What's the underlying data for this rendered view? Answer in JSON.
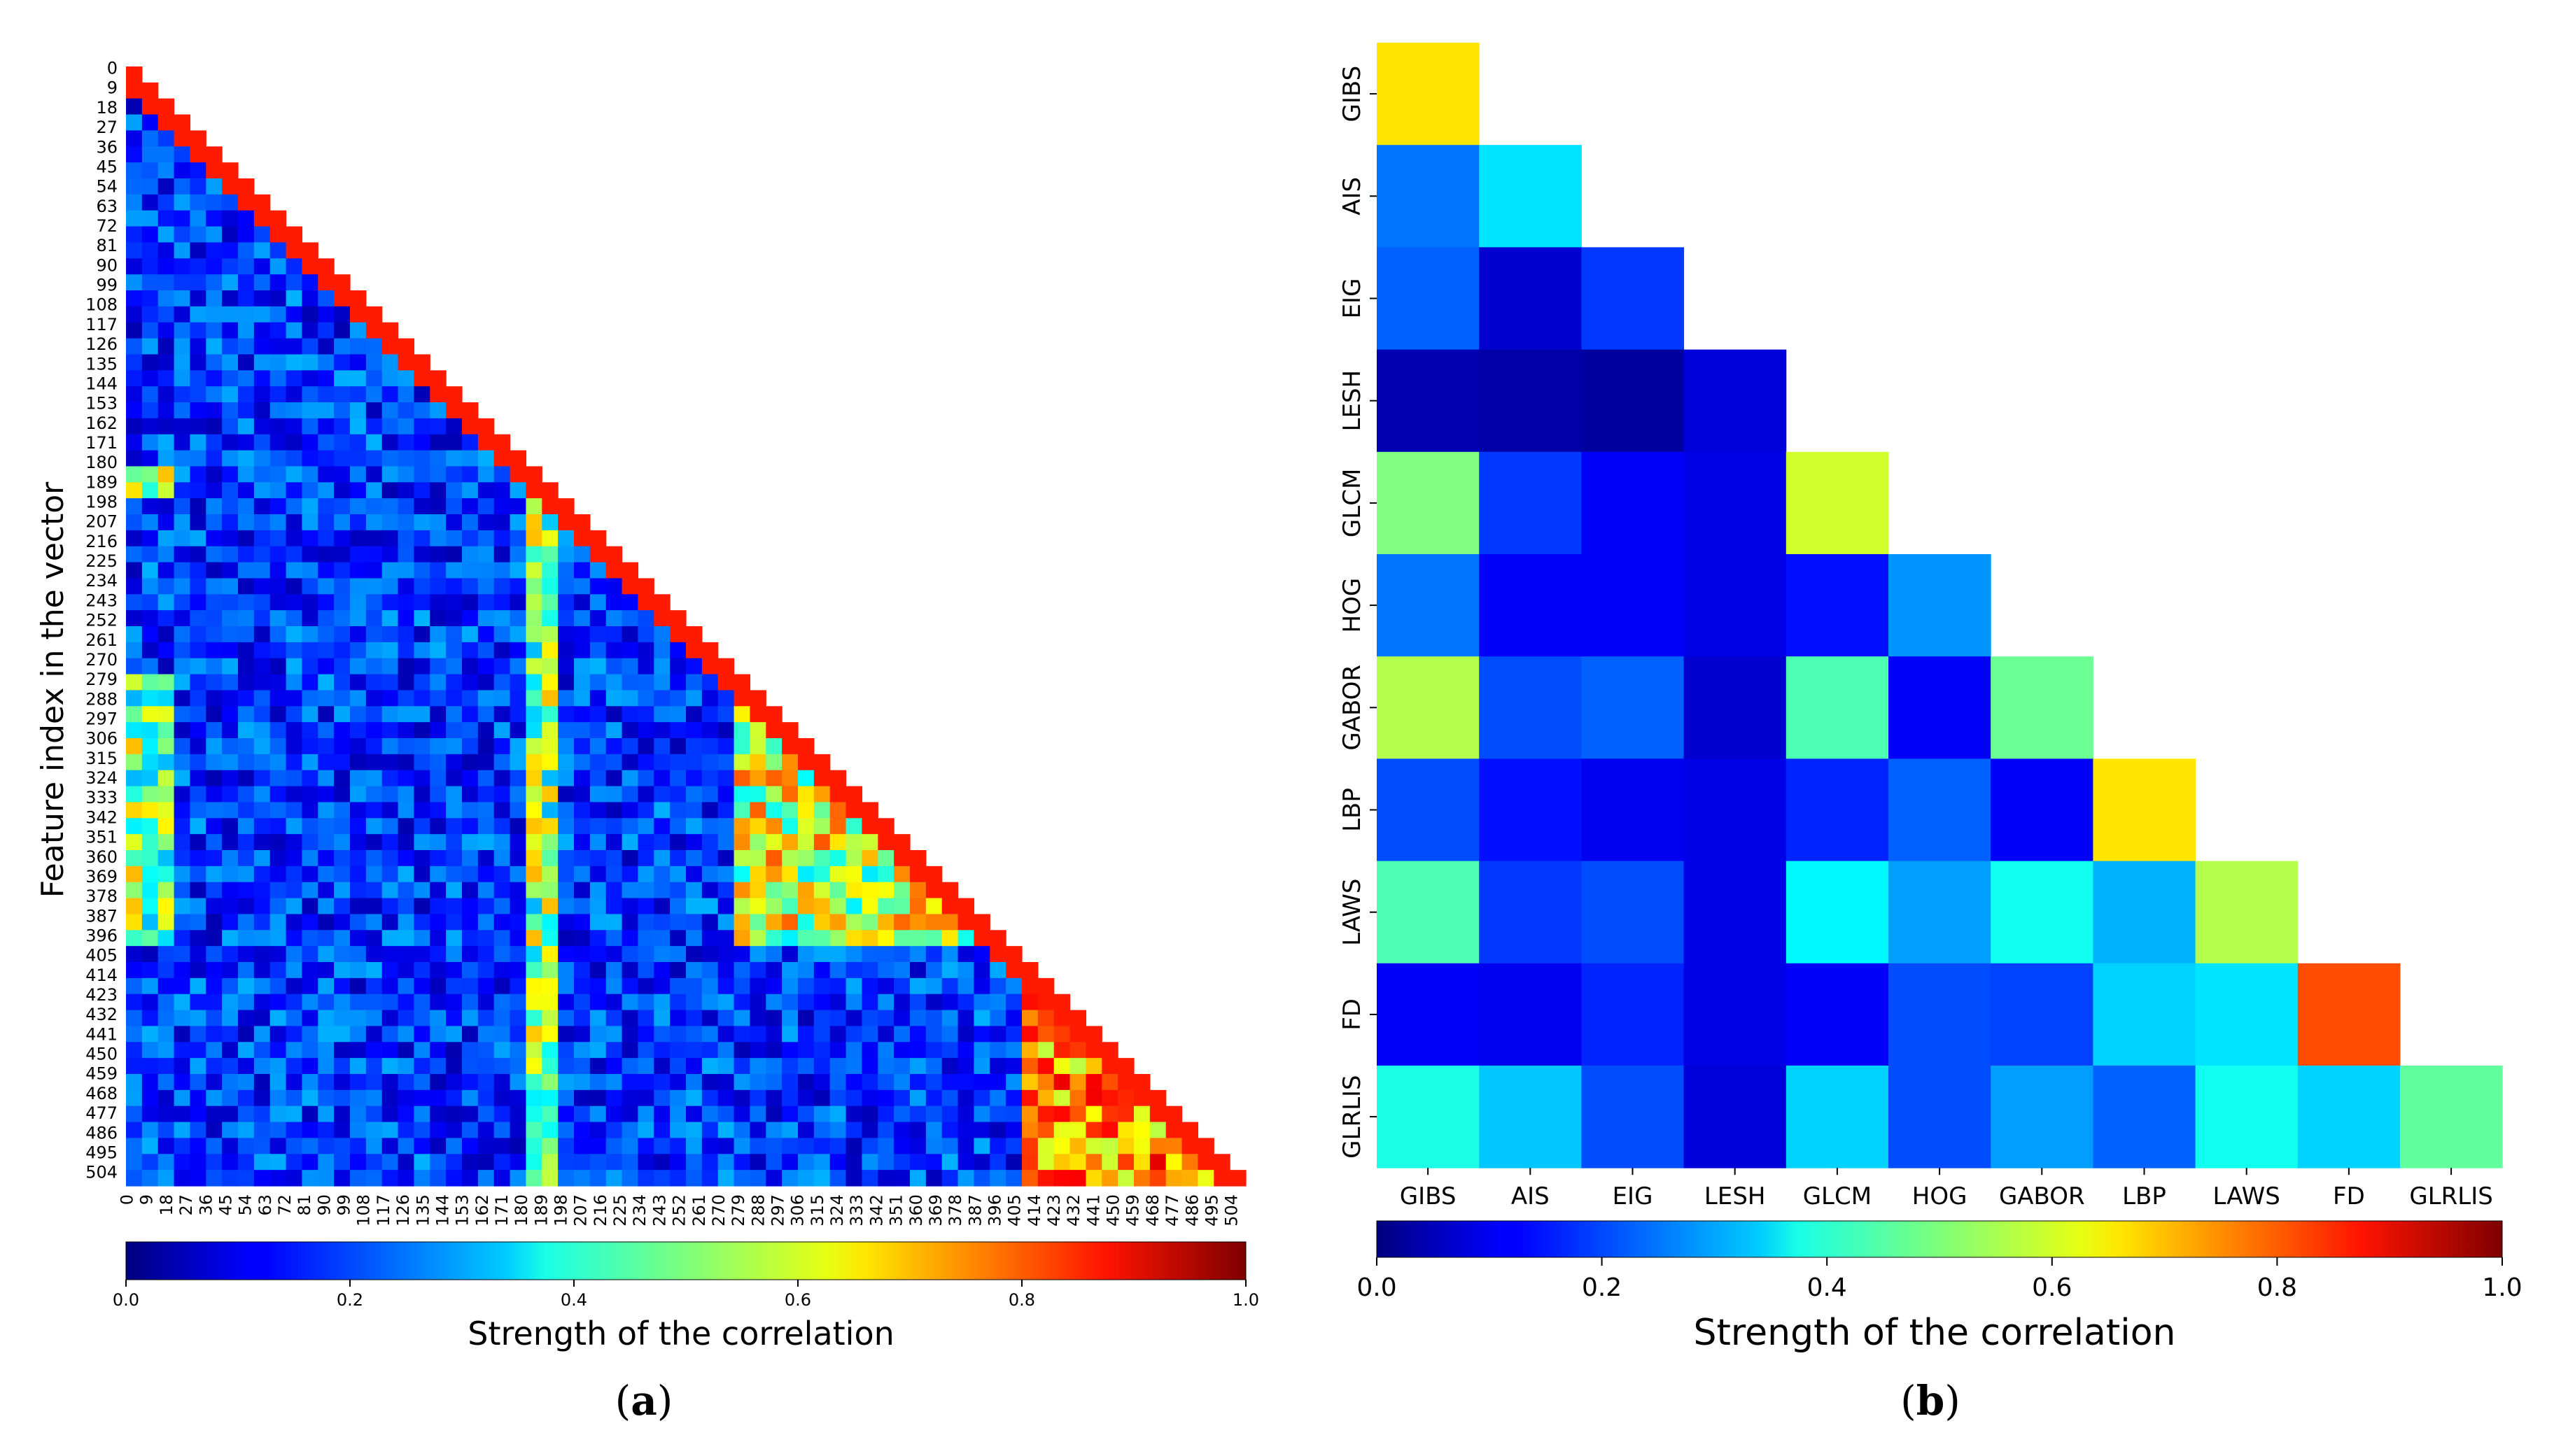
{
  "panel_a": {
    "caption_open": "(",
    "caption_letter": "a",
    "caption_close": ")",
    "ylabel": "Feature index in the vector",
    "colorbar_label": "Strength of the correlation",
    "colorbar_ticks": [
      "0.0",
      "0.2",
      "0.4",
      "0.6",
      "0.8",
      "1.0"
    ],
    "tick_labels": [
      "0",
      "9",
      "18",
      "27",
      "36",
      "45",
      "54",
      "63",
      "72",
      "81",
      "90",
      "99",
      "108",
      "117",
      "126",
      "135",
      "144",
      "153",
      "162",
      "171",
      "180",
      "189",
      "198",
      "207",
      "216",
      "225",
      "234",
      "243",
      "252",
      "261",
      "270",
      "279",
      "288",
      "297",
      "306",
      "315",
      "324",
      "333",
      "342",
      "351",
      "360",
      "369",
      "378",
      "387",
      "396",
      "405",
      "414",
      "423",
      "432",
      "441",
      "450",
      "459",
      "468",
      "477",
      "486",
      "495",
      "504"
    ]
  },
  "panel_b": {
    "caption_open": "(",
    "caption_letter": "b",
    "caption_close": ")",
    "colorbar_label": "Strength of the correlation",
    "colorbar_ticks": [
      "0.0",
      "0.2",
      "0.4",
      "0.6",
      "0.8",
      "1.0"
    ]
  },
  "chart_data": [
    {
      "type": "heatmap",
      "panel": "a",
      "shape": "lower-triangular",
      "xlabel": "",
      "ylabel": "Feature index in the vector",
      "n_features": 511,
      "color_range": [
        0.0,
        1.0
      ],
      "colormap": "jet",
      "note_values": "Dense 511x511 correlation matrix; values not individually readable",
      "colorbar_label": "Strength of the correlation"
    },
    {
      "type": "heatmap",
      "panel": "b",
      "shape": "lower-triangular",
      "categories": [
        "GIBS",
        "AIS",
        "EIG",
        "LESH",
        "GLCM",
        "HOG",
        "GABOR",
        "LBP",
        "LAWS",
        "FD",
        "GLRLIS"
      ],
      "color_range": [
        0.0,
        1.0
      ],
      "colormap": "jet",
      "colorbar_label": "Strength of the correlation",
      "values": [
        [
          0.65
        ],
        [
          0.24,
          0.35
        ],
        [
          0.22,
          0.08,
          0.18
        ],
        [
          0.05,
          0.04,
          0.03,
          0.09
        ],
        [
          0.5,
          0.18,
          0.12,
          0.1,
          0.58
        ],
        [
          0.24,
          0.12,
          0.12,
          0.1,
          0.14,
          0.27
        ],
        [
          0.55,
          0.2,
          0.22,
          0.08,
          0.45,
          0.12,
          0.48
        ],
        [
          0.2,
          0.14,
          0.11,
          0.1,
          0.16,
          0.22,
          0.12,
          0.65
        ],
        [
          0.45,
          0.18,
          0.2,
          0.1,
          0.37,
          0.28,
          0.39,
          0.3,
          0.55
        ],
        [
          0.12,
          0.11,
          0.16,
          0.1,
          0.12,
          0.2,
          0.19,
          0.33,
          0.35,
          0.8
        ],
        [
          0.4,
          0.32,
          0.2,
          0.09,
          0.33,
          0.2,
          0.28,
          0.22,
          0.39,
          0.33,
          0.47
        ]
      ]
    }
  ]
}
